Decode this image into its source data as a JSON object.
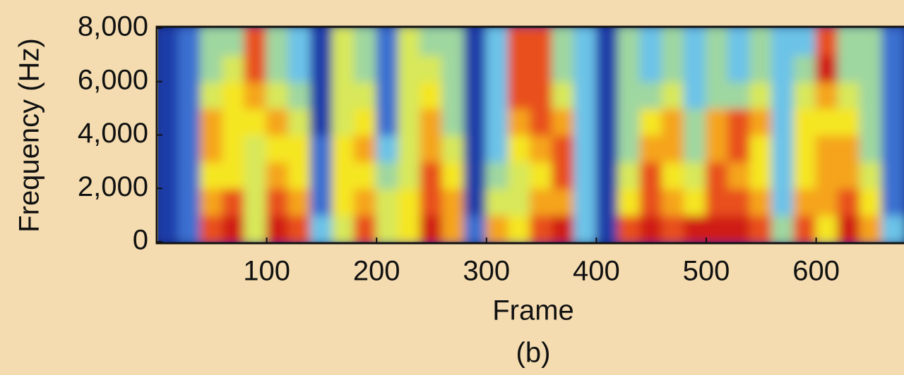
{
  "chart_data": {
    "type": "heatmap",
    "title": "(b)",
    "x_label": "Frame",
    "y_label": "Frequency (Hz)",
    "xlim": [
      0,
      680
    ],
    "ylim": [
      0,
      8000
    ],
    "xticks": [
      100,
      200,
      300,
      400,
      500,
      600
    ],
    "yticks": [
      0,
      {
        "value": 2000,
        "label": "2,000"
      },
      {
        "value": 4000,
        "label": "4,000"
      },
      {
        "value": 6000,
        "label": "6,000"
      },
      {
        "value": 8000,
        "label": "8,000"
      }
    ],
    "xbins": [
      0,
      20,
      40,
      60,
      80,
      100,
      120,
      140,
      160,
      180,
      200,
      220,
      240,
      260,
      280,
      300,
      320,
      340,
      360,
      380,
      400,
      420,
      440,
      460,
      480,
      500,
      520,
      540,
      560,
      580,
      600,
      620,
      640,
      660,
      680
    ],
    "ybins": [
      0,
      1000,
      2000,
      3000,
      4000,
      5000,
      6000,
      7000,
      8000
    ],
    "colormap": [
      "#0b1f7a",
      "#1c3ea8",
      "#3a6fd0",
      "#6cc3e8",
      "#9fd7a0",
      "#d8e85a",
      "#f5e620",
      "#f5a41a",
      "#e8501a",
      "#d01a12"
    ],
    "z": [
      [
        1,
        2,
        8,
        9,
        5,
        9,
        8,
        3,
        5,
        8,
        5,
        6,
        9,
        7,
        2,
        7,
        6,
        8,
        9,
        3,
        1,
        8,
        9,
        8,
        9,
        9,
        9,
        8,
        4,
        8,
        6,
        9,
        7,
        3
      ],
      [
        1,
        2,
        7,
        8,
        5,
        8,
        7,
        2,
        6,
        7,
        5,
        6,
        8,
        7,
        1,
        5,
        5,
        7,
        7,
        3,
        1,
        6,
        8,
        7,
        6,
        8,
        8,
        7,
        3,
        7,
        7,
        8,
        6,
        2
      ],
      [
        1,
        2,
        6,
        6,
        5,
        7,
        6,
        2,
        6,
        6,
        4,
        5,
        8,
        6,
        1,
        4,
        5,
        6,
        8,
        3,
        1,
        5,
        8,
        6,
        5,
        8,
        7,
        6,
        3,
        6,
        7,
        7,
        5,
        2
      ],
      [
        1,
        2,
        7,
        6,
        5,
        6,
        6,
        2,
        6,
        7,
        3,
        5,
        7,
        5,
        1,
        3,
        6,
        7,
        8,
        3,
        1,
        4,
        7,
        7,
        4,
        7,
        8,
        6,
        3,
        6,
        7,
        7,
        4,
        2
      ],
      [
        1,
        2,
        7,
        6,
        6,
        7,
        5,
        1,
        5,
        6,
        2,
        5,
        7,
        4,
        1,
        3,
        7,
        8,
        7,
        3,
        1,
        4,
        6,
        7,
        4,
        7,
        8,
        7,
        3,
        6,
        6,
        6,
        4,
        2
      ],
      [
        1,
        2,
        5,
        6,
        7,
        5,
        4,
        1,
        5,
        5,
        2,
        5,
        6,
        4,
        1,
        3,
        8,
        8,
        5,
        3,
        1,
        4,
        4,
        5,
        3,
        4,
        4,
        5,
        3,
        5,
        7,
        5,
        4,
        2
      ],
      [
        1,
        2,
        4,
        5,
        8,
        4,
        3,
        1,
        5,
        4,
        2,
        5,
        5,
        4,
        1,
        3,
        8,
        8,
        4,
        3,
        1,
        4,
        3,
        4,
        3,
        4,
        3,
        4,
        3,
        4,
        9,
        4,
        4,
        2
      ],
      [
        1,
        2,
        4,
        4,
        8,
        4,
        3,
        1,
        5,
        4,
        2,
        5,
        4,
        4,
        1,
        3,
        8,
        8,
        4,
        3,
        1,
        4,
        3,
        4,
        3,
        4,
        3,
        4,
        3,
        3,
        8,
        4,
        4,
        2
      ]
    ]
  }
}
